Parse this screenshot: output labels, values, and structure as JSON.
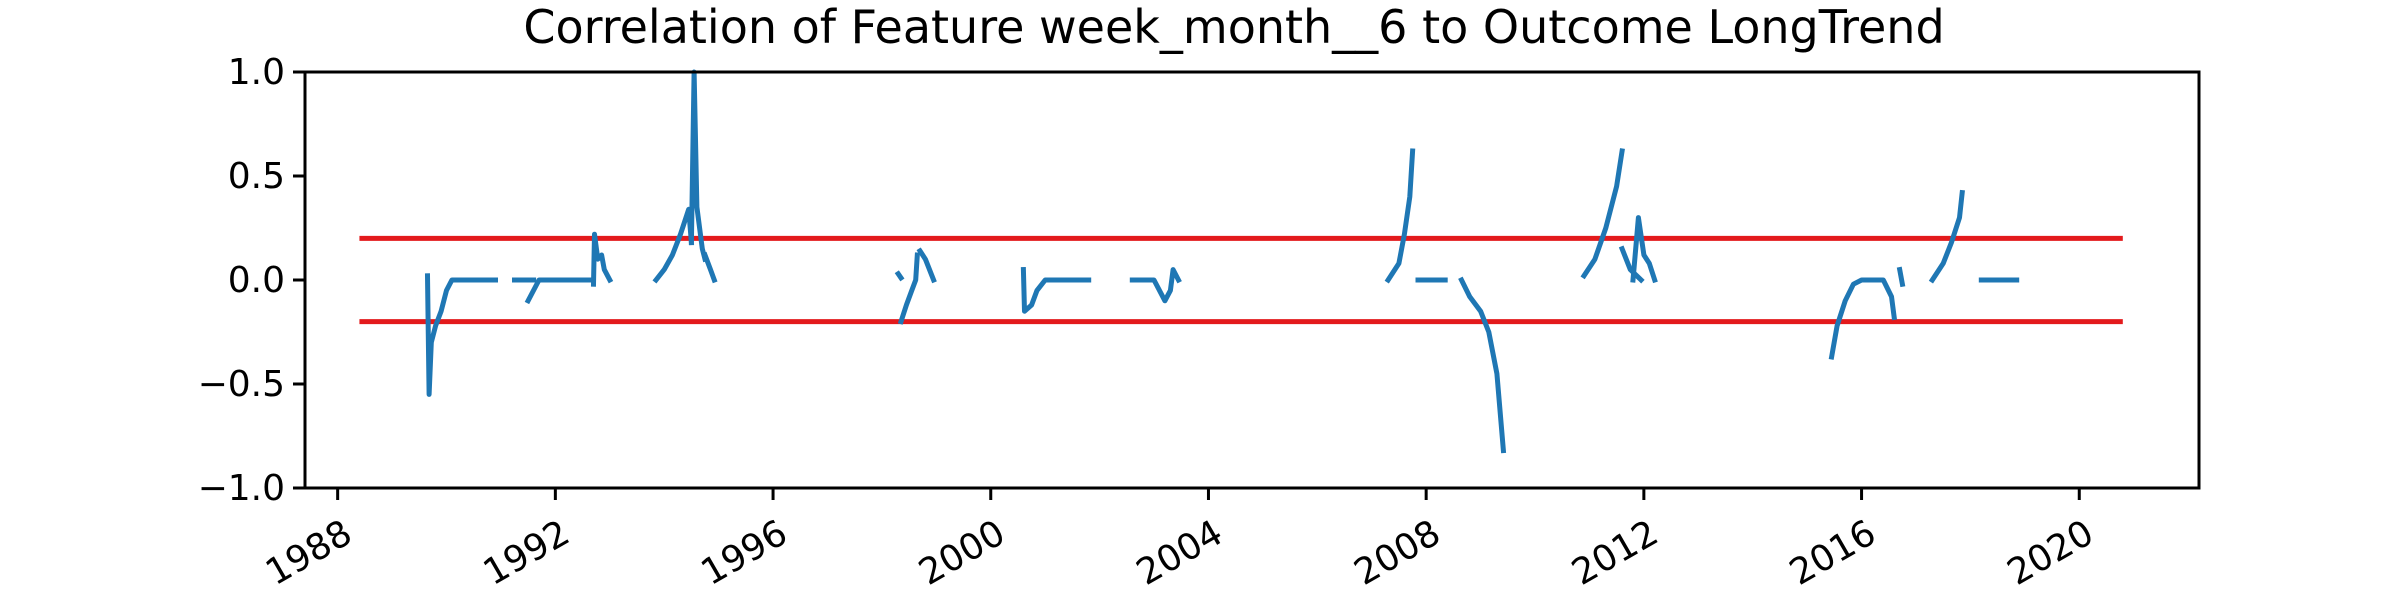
{
  "chart_data": {
    "type": "line",
    "title": "Correlation of Feature week_month__6 to Outcome LongTrend",
    "xlabel": "",
    "ylabel": "",
    "xlim": [
      1987.4,
      2022.2
    ],
    "ylim": [
      -1.0,
      1.0
    ],
    "x_ticks": [
      1988,
      1992,
      1996,
      2000,
      2004,
      2008,
      2012,
      2016,
      2020
    ],
    "x_tick_labels": [
      "1988",
      "1992",
      "1996",
      "2000",
      "2004",
      "2008",
      "2012",
      "2016",
      "2020"
    ],
    "y_ticks": [
      -1.0,
      -0.5,
      0.0,
      0.5,
      1.0
    ],
    "y_tick_labels": [
      "−1.0",
      "−0.5",
      "0.0",
      "0.5",
      "1.0"
    ],
    "grid": false,
    "colors": {
      "series": "#1f77b4",
      "threshold": "#e31a1c",
      "axes": "#000000"
    },
    "thresholds": [
      {
        "y": 0.2,
        "x_range": [
          1988.4,
          2020.8
        ]
      },
      {
        "y": -0.2,
        "x_range": [
          1988.4,
          2020.8
        ]
      }
    ],
    "series": [
      {
        "segments": [
          [
            [
              1989.65,
              0.02
            ],
            [
              1989.68,
              -0.55
            ],
            [
              1989.72,
              -0.3
            ],
            [
              1989.8,
              -0.22
            ],
            [
              1989.9,
              -0.15
            ],
            [
              1990.0,
              -0.05
            ],
            [
              1990.1,
              0.0
            ],
            [
              1990.9,
              0.0
            ]
          ],
          [
            [
              1991.25,
              0.0
            ],
            [
              1991.6,
              0.0
            ]
          ],
          [
            [
              1991.5,
              -0.1
            ],
            [
              1991.7,
              0.0
            ],
            [
              1992.7,
              0.0
            ]
          ],
          [
            [
              1992.7,
              -0.02
            ],
            [
              1992.72,
              0.22
            ],
            [
              1992.78,
              0.1
            ],
            [
              1992.85,
              0.12
            ],
            [
              1992.9,
              0.05
            ],
            [
              1993.0,
              0.0
            ]
          ],
          [
            [
              1993.85,
              0.0
            ],
            [
              1994.0,
              0.05
            ],
            [
              1994.15,
              0.12
            ],
            [
              1994.3,
              0.22
            ],
            [
              1994.45,
              0.34
            ],
            [
              1994.5,
              0.18
            ]
          ],
          [
            [
              1994.5,
              0.18
            ],
            [
              1994.55,
              1.0
            ],
            [
              1994.6,
              0.35
            ],
            [
              1994.7,
              0.15
            ],
            [
              1994.75,
              0.1
            ]
          ],
          [
            [
              1994.75,
              0.12
            ],
            [
              1994.85,
              0.05
            ],
            [
              1994.92,
              0.0
            ]
          ],
          [
            [
              1998.3,
              0.03
            ],
            [
              1998.35,
              0.01
            ]
          ],
          [
            [
              1998.35,
              -0.2
            ],
            [
              1998.45,
              -0.12
            ],
            [
              1998.55,
              -0.05
            ],
            [
              1998.62,
              0.0
            ],
            [
              1998.65,
              0.12
            ]
          ],
          [
            [
              1998.7,
              0.14
            ],
            [
              1998.8,
              0.1
            ],
            [
              1998.95,
              0.0
            ]
          ],
          [
            [
              2000.6,
              0.05
            ],
            [
              2000.62,
              -0.15
            ],
            [
              2000.75,
              -0.12
            ],
            [
              2000.85,
              -0.05
            ],
            [
              2001.0,
              0.0
            ],
            [
              2001.8,
              0.0
            ]
          ],
          [
            [
              2002.6,
              0.0
            ],
            [
              2003.0,
              0.0
            ],
            [
              2003.2,
              -0.1
            ],
            [
              2003.3,
              -0.05
            ],
            [
              2003.35,
              0.05
            ],
            [
              2003.45,
              0.0
            ]
          ],
          [
            [
              2007.3,
              0.0
            ],
            [
              2007.5,
              0.08
            ],
            [
              2007.6,
              0.22
            ],
            [
              2007.7,
              0.4
            ],
            [
              2007.75,
              0.62
            ]
          ],
          [
            [
              2007.85,
              0.0
            ],
            [
              2008.35,
              0.0
            ]
          ],
          [
            [
              2008.65,
              0.0
            ],
            [
              2008.8,
              -0.08
            ],
            [
              2009.0,
              -0.15
            ],
            [
              2009.15,
              -0.25
            ],
            [
              2009.3,
              -0.45
            ],
            [
              2009.42,
              -0.82
            ]
          ],
          [
            [
              2010.9,
              0.02
            ],
            [
              2011.1,
              0.1
            ],
            [
              2011.3,
              0.25
            ],
            [
              2011.5,
              0.45
            ],
            [
              2011.6,
              0.62
            ]
          ],
          [
            [
              2011.6,
              0.15
            ],
            [
              2011.75,
              0.05
            ],
            [
              2011.95,
              0.0
            ]
          ],
          [
            [
              2011.8,
              0.0
            ],
            [
              2011.9,
              0.3
            ],
            [
              2012.0,
              0.12
            ],
            [
              2012.1,
              0.08
            ],
            [
              2012.2,
              0.0
            ]
          ],
          [
            [
              2015.45,
              -0.37
            ],
            [
              2015.55,
              -0.22
            ],
            [
              2015.7,
              -0.1
            ],
            [
              2015.85,
              -0.02
            ],
            [
              2016.0,
              0.0
            ],
            [
              2016.4,
              0.0
            ],
            [
              2016.55,
              -0.08
            ],
            [
              2016.6,
              -0.18
            ]
          ],
          [
            [
              2016.7,
              0.05
            ],
            [
              2016.75,
              -0.02
            ]
          ],
          [
            [
              2017.3,
              0.0
            ],
            [
              2017.5,
              0.08
            ],
            [
              2017.65,
              0.18
            ],
            [
              2017.8,
              0.3
            ],
            [
              2017.85,
              0.42
            ]
          ],
          [
            [
              2018.2,
              0.0
            ],
            [
              2018.85,
              0.0
            ]
          ]
        ]
      }
    ]
  }
}
